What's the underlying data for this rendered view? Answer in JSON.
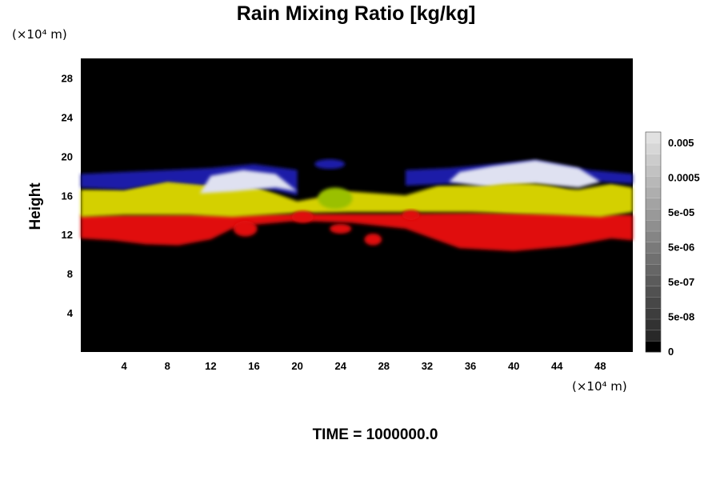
{
  "chart_data": {
    "type": "heatmap",
    "title": "Rain Mixing Ratio [kg/kg]",
    "xlabel": "",
    "ylabel": "Height",
    "x_unit": "(×10⁴ m)",
    "y_unit": "(×10⁴ m)",
    "xlim": [
      0,
      51
    ],
    "ylim": [
      0,
      30
    ],
    "xticks": [
      4,
      8,
      12,
      16,
      20,
      24,
      28,
      32,
      36,
      40,
      44,
      48
    ],
    "yticks": [
      4,
      8,
      12,
      16,
      20,
      24,
      28
    ],
    "colorbar": {
      "labels": [
        "0.005",
        "0.0005",
        "5e-05",
        "5e-06",
        "5e-07",
        "5e-08",
        "0"
      ],
      "levels": 20
    },
    "background_color": "#000000",
    "regions": [
      {
        "name": "",
        "color": "#e01010",
        "points": [
          [
            0,
            11.6
          ],
          [
            3,
            11.4
          ],
          [
            6,
            11.0
          ],
          [
            9,
            10.9
          ],
          [
            12,
            11.5
          ],
          [
            14,
            12.6
          ],
          [
            16,
            13.0
          ],
          [
            20,
            13.4
          ],
          [
            25,
            13.2
          ],
          [
            30,
            12.6
          ],
          [
            35,
            10.6
          ],
          [
            40,
            10.3
          ],
          [
            45,
            10.8
          ],
          [
            49,
            11.6
          ],
          [
            51,
            11.4
          ],
          [
            51,
            14.0
          ],
          [
            44,
            14.2
          ],
          [
            36,
            14.2
          ],
          [
            28,
            14.1
          ],
          [
            20,
            14.1
          ],
          [
            12,
            14.1
          ],
          [
            6,
            14.0
          ],
          [
            0,
            14.0
          ]
        ]
      },
      {
        "name": "",
        "color": "#d4d000",
        "points": [
          [
            0,
            13.8
          ],
          [
            4,
            14.0
          ],
          [
            10,
            14.0
          ],
          [
            14,
            13.8
          ],
          [
            20,
            14.2
          ],
          [
            25,
            14.3
          ],
          [
            30,
            14.3
          ],
          [
            36,
            14.3
          ],
          [
            44,
            14.0
          ],
          [
            48,
            13.8
          ],
          [
            51,
            14.3
          ],
          [
            51,
            16.8
          ],
          [
            49,
            17.2
          ],
          [
            46,
            16.6
          ],
          [
            42,
            16.8
          ],
          [
            37,
            17.0
          ],
          [
            33,
            17.0
          ],
          [
            30,
            16.0
          ],
          [
            25,
            16.4
          ],
          [
            22,
            15.8
          ],
          [
            20,
            15.4
          ],
          [
            18,
            16.2
          ],
          [
            15,
            17.3
          ],
          [
            12,
            17.2
          ],
          [
            8,
            17.6
          ],
          [
            4,
            16.6
          ],
          [
            0,
            16.6
          ]
        ]
      },
      {
        "name": "",
        "color": "#1c1ca8",
        "points": [
          [
            0,
            16.8
          ],
          [
            4,
            16.6
          ],
          [
            8,
            17.4
          ],
          [
            12,
            17.0
          ],
          [
            16,
            17.0
          ],
          [
            20,
            16.0
          ],
          [
            20,
            18.6
          ],
          [
            16,
            19.2
          ],
          [
            12,
            18.8
          ],
          [
            8,
            18.6
          ],
          [
            4,
            18.4
          ],
          [
            0,
            18.2
          ]
        ]
      },
      {
        "name": "",
        "color": "#1c1ca8",
        "points": [
          [
            30,
            17.0
          ],
          [
            34,
            17.2
          ],
          [
            38,
            17.8
          ],
          [
            44,
            17.6
          ],
          [
            48,
            17.4
          ],
          [
            51,
            17.2
          ],
          [
            51,
            18.2
          ],
          [
            47,
            18.6
          ],
          [
            42,
            19.6
          ],
          [
            38,
            19.2
          ],
          [
            34,
            18.8
          ],
          [
            30,
            18.6
          ]
        ]
      },
      {
        "name": "",
        "color": "#dfe1f1",
        "points": [
          [
            11,
            16.2
          ],
          [
            14,
            16.4
          ],
          [
            18,
            16.8
          ],
          [
            20,
            16.4
          ],
          [
            18,
            18.2
          ],
          [
            15,
            18.6
          ],
          [
            12,
            18.0
          ]
        ]
      },
      {
        "name": "",
        "color": "#dfe1f1",
        "points": [
          [
            34,
            17.4
          ],
          [
            38,
            16.8
          ],
          [
            42,
            17.2
          ],
          [
            46,
            16.8
          ],
          [
            48,
            17.4
          ],
          [
            46,
            18.8
          ],
          [
            42,
            19.6
          ],
          [
            38,
            19.0
          ],
          [
            35,
            18.4
          ]
        ]
      }
    ],
    "blobs": [
      {
        "color": "#e01010",
        "cx": 15.2,
        "cy": 12.6,
        "rx": 1.1,
        "ry": 0.8
      },
      {
        "color": "#e01010",
        "cx": 27.0,
        "cy": 11.5,
        "rx": 0.8,
        "ry": 0.6
      },
      {
        "color": "#e01010",
        "cx": 24.0,
        "cy": 12.6,
        "rx": 1.0,
        "ry": 0.5
      },
      {
        "color": "#e01010",
        "cx": 20.5,
        "cy": 13.8,
        "rx": 1.0,
        "ry": 0.6
      },
      {
        "color": "#e01010",
        "cx": 30.5,
        "cy": 14.0,
        "rx": 0.8,
        "ry": 0.5
      },
      {
        "color": "#9ac000",
        "cx": 23.5,
        "cy": 15.7,
        "rx": 1.6,
        "ry": 1.1
      },
      {
        "color": "#1c1ca8",
        "cx": 23.0,
        "cy": 19.2,
        "rx": 1.4,
        "ry": 0.5
      },
      {
        "color": "#d4d000",
        "cx": 40.5,
        "cy": 15.8,
        "rx": 5.0,
        "ry": 1.4
      }
    ]
  },
  "footer": {
    "time_label": "TIME = 1000000.0"
  }
}
